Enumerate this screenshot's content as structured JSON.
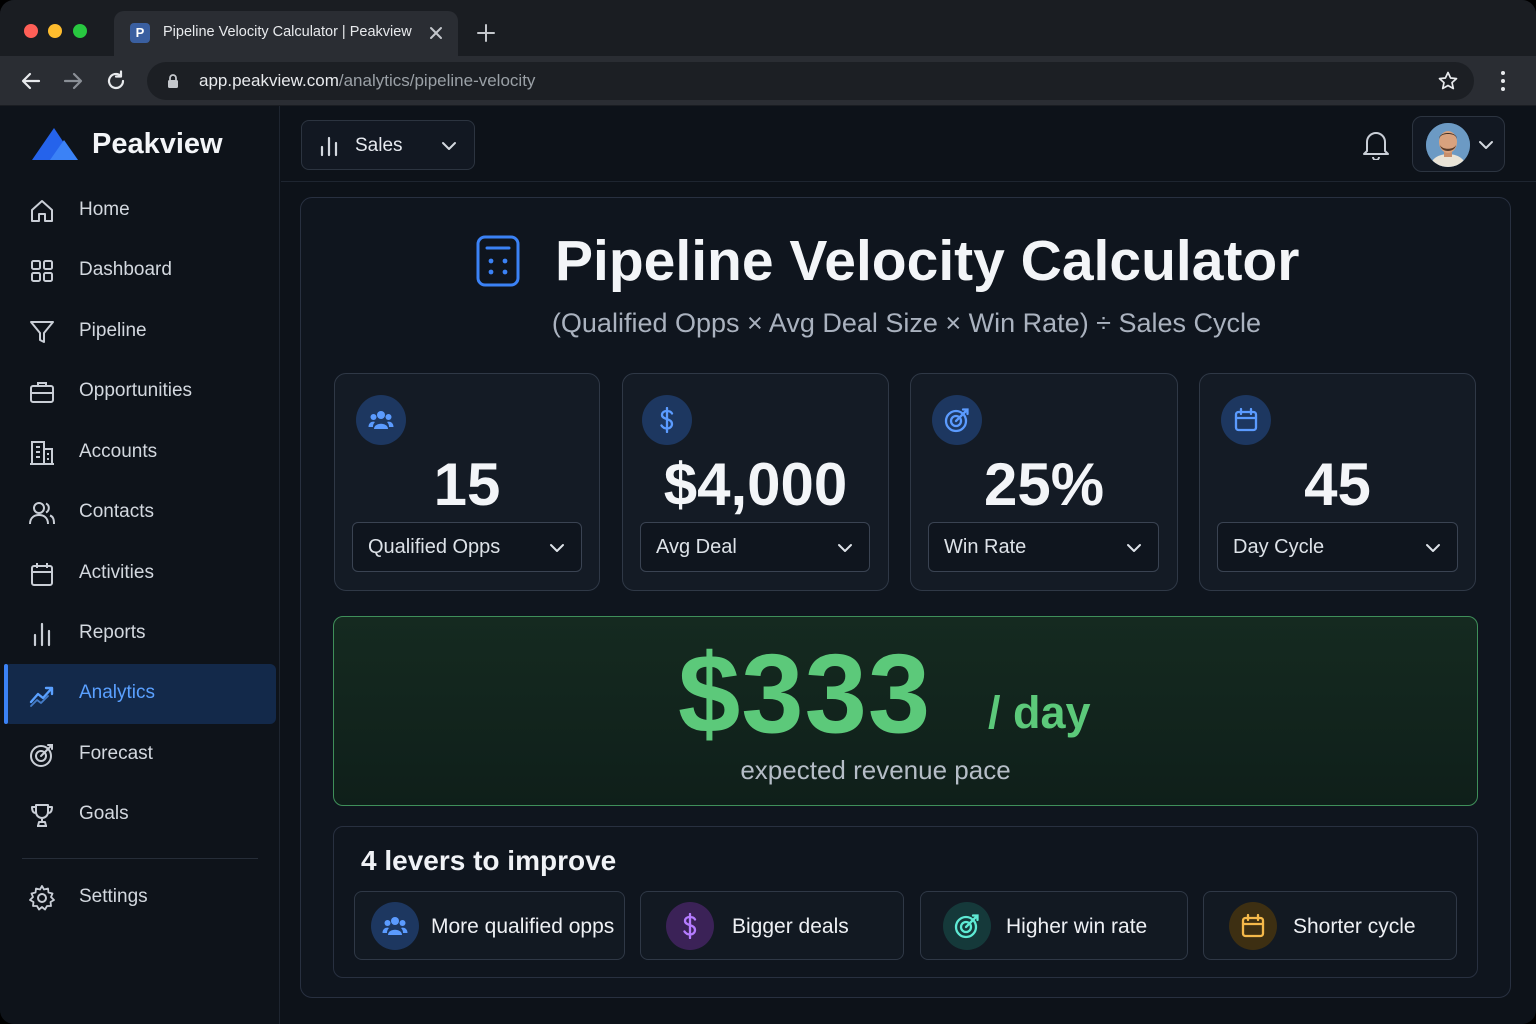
{
  "browser": {
    "tab_title": "Pipeline Velocity Calculator | Peakview",
    "favicon_letter": "P",
    "url_host": "app.peakview.com",
    "url_path": "/analytics/pipeline-velocity"
  },
  "sidebar": {
    "brand": "Peakview",
    "items": [
      {
        "label": "Home",
        "icon": "home-icon"
      },
      {
        "label": "Dashboard",
        "icon": "grid-icon"
      },
      {
        "label": "Pipeline",
        "icon": "funnel-icon"
      },
      {
        "label": "Opportunities",
        "icon": "briefcase-icon"
      },
      {
        "label": "Accounts",
        "icon": "building-icon"
      },
      {
        "label": "Contacts",
        "icon": "users-icon"
      },
      {
        "label": "Activities",
        "icon": "calendar-icon"
      },
      {
        "label": "Reports",
        "icon": "bar-chart-icon"
      },
      {
        "label": "Analytics",
        "icon": "trend-icon",
        "active": true
      },
      {
        "label": "Forecast",
        "icon": "target-icon"
      },
      {
        "label": "Goals",
        "icon": "trophy-icon"
      }
    ],
    "settings_label": "Settings"
  },
  "topbar": {
    "workspace": "Sales"
  },
  "page": {
    "title": "Pipeline Velocity Calculator",
    "formula": "(Qualified Opps × Avg Deal Size × Win Rate) ÷ Sales Cycle"
  },
  "metrics": [
    {
      "value": "15",
      "select": "Qualified Opps",
      "icon": "users-icon"
    },
    {
      "value": "$4,000",
      "select": "Avg Deal",
      "icon": "dollar-icon"
    },
    {
      "value": "25%",
      "select": "Win Rate",
      "icon": "target-icon"
    },
    {
      "value": "45",
      "select": "Day Cycle",
      "icon": "calendar-icon"
    }
  ],
  "result": {
    "value": "$333",
    "unit": "/ day",
    "caption": "expected revenue pace",
    "color": "#5cc97a"
  },
  "levers": {
    "title": "4 levers to improve",
    "items": [
      {
        "label": "More qualified opps",
        "icon": "users-icon",
        "color": "#3b82f6"
      },
      {
        "label": "Bigger deals",
        "icon": "dollar-icon",
        "color": "#a855f7"
      },
      {
        "label": "Higher win rate",
        "icon": "target-icon",
        "color": "#2dd4bf"
      },
      {
        "label": "Shorter cycle",
        "icon": "calendar-icon",
        "color": "#f59e0b"
      }
    ]
  },
  "colors": {
    "accent": "#3b82f6",
    "success": "#5cc97a",
    "background": "#0d1219"
  }
}
